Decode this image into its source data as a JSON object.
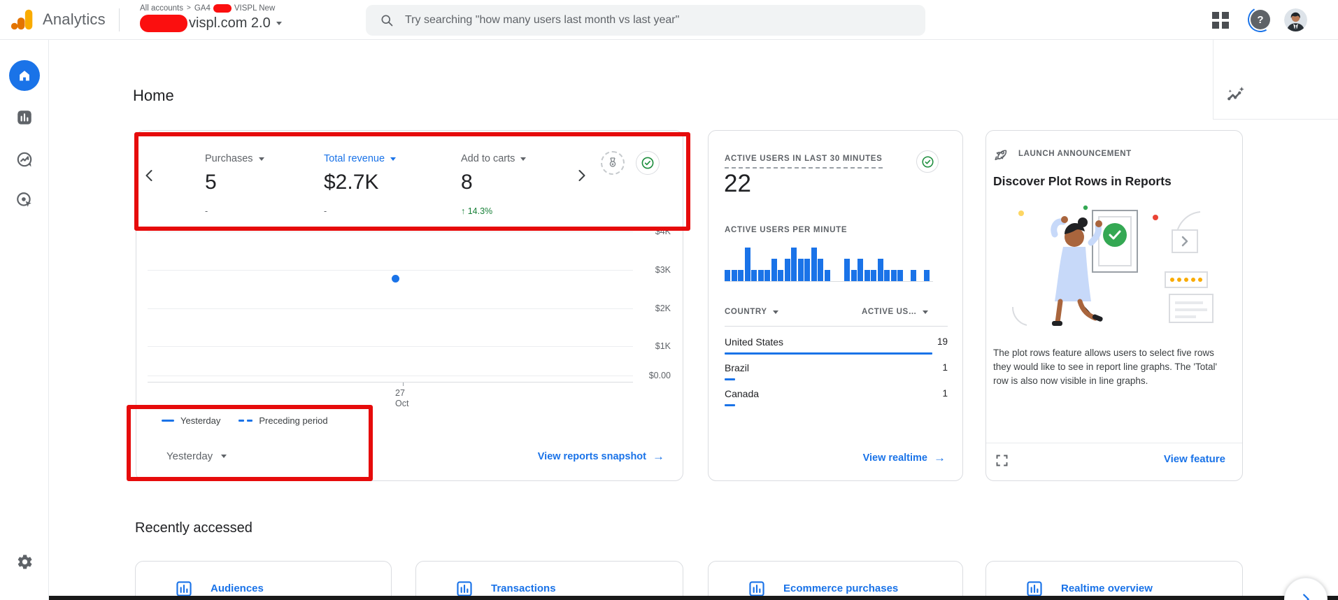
{
  "icons": {
    "arrow_right": "→",
    "help_glyph": "?"
  },
  "topbar": {
    "brand": "Analytics",
    "breadcrumb": {
      "all_accounts": "All accounts",
      "separator": ">",
      "account_prefix": "GA4",
      "account_suffix": "VISPL New"
    },
    "property_name": "vispl.com 2.0",
    "search": {
      "placeholder": "Try searching \"how many users last month vs last year\""
    }
  },
  "sidebar": {
    "items": [
      {
        "name": "home",
        "active": true
      },
      {
        "name": "reports",
        "active": false
      },
      {
        "name": "explore",
        "active": false
      },
      {
        "name": "advertising",
        "active": false
      }
    ],
    "bottom": "admin-settings"
  },
  "page": {
    "title": "Home"
  },
  "snapshot_card": {
    "metrics": [
      {
        "label": "Purchases",
        "value": "5",
        "sub": "-",
        "label_color": "#5f6368",
        "sub_color": "#5f6368"
      },
      {
        "label": "Total revenue",
        "value": "$2.7K",
        "sub": "-",
        "label_color": "#1a73e8",
        "sub_color": "#5f6368"
      },
      {
        "label": "Add to carts",
        "value": "8",
        "sub": "↑ 14.3%",
        "label_color": "#5f6368",
        "sub_color": "#188038"
      }
    ],
    "chart_data": {
      "type": "scatter",
      "series": [
        {
          "name": "Yesterday",
          "points": [
            {
              "x": "27 Oct",
              "y": 2700
            }
          ]
        }
      ],
      "y_ticks": [
        "$4K",
        "$3K",
        "$2K",
        "$1K",
        "$0.00"
      ],
      "y_max": 4000,
      "x_ticks": [
        "27 Oct"
      ],
      "legend": [
        {
          "label": "Yesterday",
          "style": "solid"
        },
        {
          "label": "Preceding period",
          "style": "dashed"
        }
      ]
    },
    "date_selector": "Yesterday",
    "footer_link": "View reports snapshot"
  },
  "realtime_card": {
    "title": "ACTIVE USERS IN LAST 30 MINUTES",
    "active_users": "22",
    "per_minute_label": "ACTIVE USERS PER MINUTE",
    "chart_data": {
      "type": "bar",
      "unit": "active users per minute",
      "values": [
        1,
        1,
        1,
        3,
        1,
        1,
        1,
        2,
        1,
        2,
        3,
        2,
        2,
        3,
        2,
        1,
        0,
        0,
        2,
        1,
        2,
        1,
        1,
        2,
        1,
        1,
        1,
        0,
        1,
        0,
        1
      ],
      "max": 3
    },
    "table": {
      "columns": [
        "COUNTRY",
        "ACTIVE US…"
      ],
      "rows": [
        {
          "country": "United States",
          "users": "19",
          "bar_fraction": 1.0
        },
        {
          "country": "Brazil",
          "users": "1",
          "bar_fraction": 0.05
        },
        {
          "country": "Canada",
          "users": "1",
          "bar_fraction": 0.05
        }
      ]
    },
    "footer_link": "View realtime"
  },
  "announcement_card": {
    "eyebrow": "LAUNCH ANNOUNCEMENT",
    "title": "Discover Plot Rows in Reports",
    "body": "The plot rows feature allows users to select five rows they would like to see in report line graphs. The 'Total' row is also now visible in line graphs.",
    "footer_link": "View feature"
  },
  "recently_accessed": {
    "title": "Recently accessed",
    "items": [
      {
        "label": "Audiences"
      },
      {
        "label": "Transactions"
      },
      {
        "label": "Ecommerce purchases"
      },
      {
        "label": "Realtime overview"
      }
    ]
  },
  "colors": {
    "accent_blue": "#1a73e8",
    "green": "#188038",
    "check_green": "#1e8e3e",
    "annotation_red": "#e60b0b",
    "text_dark": "#202124",
    "text_gray": "#5f6368",
    "border": "#dadce0"
  }
}
